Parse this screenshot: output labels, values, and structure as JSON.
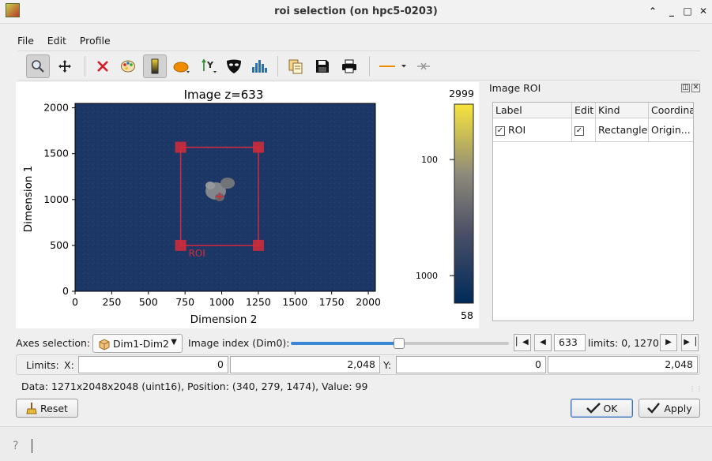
{
  "window": {
    "title": "roi selection (on hpc5-0203)"
  },
  "menu": [
    "File",
    "Edit",
    "Profile"
  ],
  "toolbar": {
    "icons": [
      "zoom-icon",
      "pan-icon",
      "clear-icon",
      "colormap-icon",
      "colorbar-icon",
      "roi-shape-icon",
      "y-axis-icon",
      "mask-icon",
      "histogram-icon",
      "copy-icon",
      "save-icon",
      "print-icon",
      "line-style-icon",
      "crosshair-icon"
    ]
  },
  "plot": {
    "title": "Image z=633",
    "xlabel": "Dimension 2",
    "ylabel": "Dimension 1",
    "roi_label": "ROI",
    "colorbar_max": "2999",
    "colorbar_min": "58",
    "colorbar_ticks": [
      "1000",
      "100"
    ],
    "colors": {
      "image_bg": "#1c3666",
      "roi": "#d62a3a"
    }
  },
  "chart_data": {
    "type": "heatmap",
    "title": "Image z=633",
    "xlabel": "Dimension 2",
    "ylabel": "Dimension 1",
    "xlim": [
      0,
      2048
    ],
    "ylim": [
      0,
      2048
    ],
    "xticks": [
      "0",
      "250",
      "500",
      "750",
      "1000",
      "1250",
      "1500",
      "1750",
      "2000"
    ],
    "yticks": [
      "0",
      "500",
      "1000",
      "1500",
      "2000"
    ],
    "roi": {
      "x0": 720,
      "x1": 1250,
      "y0": 500,
      "y1": 1570,
      "label": "ROI"
    },
    "colorbar": {
      "min": 58,
      "max": 2999,
      "scale": "log",
      "ticks": [
        100,
        1000
      ]
    }
  },
  "roi_panel": {
    "title": "Image ROI",
    "columns": [
      "Label",
      "Edit",
      "Kind",
      "Coordina"
    ],
    "rows": [
      {
        "label": "ROI",
        "edit": true,
        "kind": "Rectangle",
        "coords": "Origin..."
      }
    ]
  },
  "axes_bar": {
    "axes_label": "Axes selection:",
    "axes_value": "Dim1-Dim2",
    "index_label": "Image index (Dim0):",
    "index_value": "633",
    "index_fraction": 0.498,
    "limits_text": "limits: 0, 1270"
  },
  "limits_bar": {
    "label": "Limits:",
    "x_label": "X:",
    "x_min": "0",
    "x_max": "2,048",
    "y_label": "Y:",
    "y_min": "0",
    "y_max": "2,048"
  },
  "status": "Data: 1271x2048x2048 (uint16), Position: (340, 279, 1474), Value: 99",
  "buttons": {
    "reset": "Reset",
    "ok": "OK",
    "apply": "Apply"
  }
}
